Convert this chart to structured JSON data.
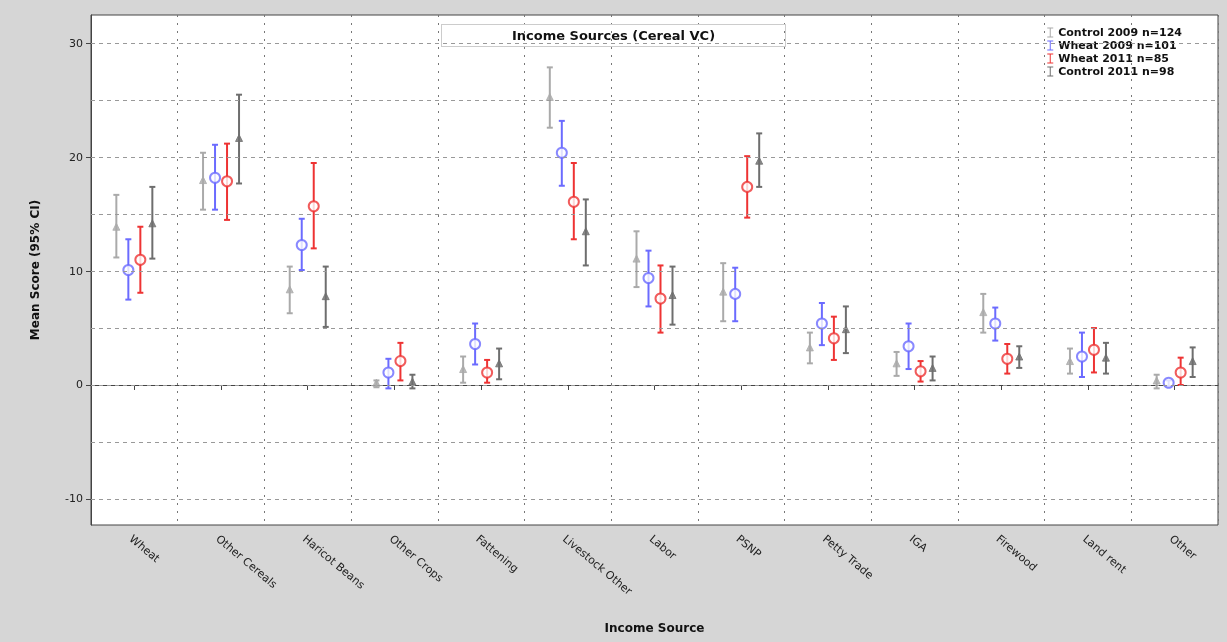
{
  "chart_data": {
    "type": "scatter",
    "title": "Income Sources (Cereal VC)",
    "xlabel": "Income Source",
    "ylabel": "Mean Score (95% CI)",
    "categories": [
      "Wheat",
      "Other Cereals",
      "Haricot Beans",
      "Other Crops",
      "Fattening",
      "Livestock Other",
      "Labor",
      "PSNP",
      "Petty Trade",
      "IGA",
      "Firewood",
      "Land rent",
      "Other"
    ],
    "series": [
      {
        "name": "Control 2009 n=124",
        "color": "#aaaaaa",
        "marker": "triangle",
        "values": [
          13.9,
          18.0,
          8.4,
          0.2,
          1.4,
          25.3,
          11.1,
          8.2,
          3.3,
          1.9,
          6.4,
          2.1,
          0.4
        ],
        "errors": [
          [
            11.2,
            16.7
          ],
          [
            15.4,
            20.4
          ],
          [
            6.3,
            10.4
          ],
          [
            -0.2,
            0.4
          ],
          [
            0.2,
            2.5
          ],
          [
            22.6,
            27.9
          ],
          [
            8.6,
            13.5
          ],
          [
            5.6,
            10.7
          ],
          [
            1.9,
            4.6
          ],
          [
            0.8,
            2.9
          ],
          [
            4.6,
            8.0
          ],
          [
            1.0,
            3.2
          ],
          [
            -0.3,
            0.9
          ]
        ]
      },
      {
        "name": "Wheat 2009 n=101",
        "color": "#6b6bff",
        "marker": "circle",
        "values": [
          10.1,
          18.2,
          12.3,
          1.1,
          3.6,
          20.4,
          9.4,
          8.0,
          5.4,
          3.4,
          5.4,
          2.5,
          0.2
        ],
        "errors": [
          [
            7.5,
            12.8
          ],
          [
            15.4,
            21.1
          ],
          [
            10.1,
            14.6
          ],
          [
            -0.3,
            2.3
          ],
          [
            1.8,
            5.4
          ],
          [
            17.5,
            23.2
          ],
          [
            6.9,
            11.8
          ],
          [
            5.6,
            10.3
          ],
          [
            3.5,
            7.2
          ],
          [
            1.4,
            5.4
          ],
          [
            3.9,
            6.8
          ],
          [
            0.7,
            4.6
          ],
          [
            -0.1,
            0.4
          ]
        ]
      },
      {
        "name": "Wheat 2011 n=85",
        "color": "#ee3333",
        "marker": "circle",
        "values": [
          11.0,
          17.9,
          15.7,
          2.1,
          1.1,
          16.1,
          7.6,
          17.4,
          4.1,
          1.2,
          2.3,
          3.1,
          1.1
        ],
        "errors": [
          [
            8.1,
            13.9
          ],
          [
            14.5,
            21.2
          ],
          [
            12.0,
            19.5
          ],
          [
            0.4,
            3.7
          ],
          [
            0.2,
            2.2
          ],
          [
            12.8,
            19.5
          ],
          [
            4.6,
            10.5
          ],
          [
            14.7,
            20.1
          ],
          [
            2.2,
            6.0
          ],
          [
            0.3,
            2.1
          ],
          [
            1.0,
            3.6
          ],
          [
            1.1,
            5.0
          ],
          [
            0.0,
            2.4
          ]
        ]
      },
      {
        "name": "Control 2011 n=98",
        "color": "#6e6e6e",
        "marker": "triangle",
        "values": [
          14.2,
          21.7,
          7.8,
          0.3,
          1.9,
          13.5,
          7.9,
          19.7,
          4.9,
          1.5,
          2.5,
          2.4,
          2.1
        ],
        "errors": [
          [
            11.1,
            17.4
          ],
          [
            17.7,
            25.5
          ],
          [
            5.1,
            10.4
          ],
          [
            -0.3,
            0.9
          ],
          [
            0.5,
            3.2
          ],
          [
            10.5,
            16.3
          ],
          [
            5.3,
            10.4
          ],
          [
            17.4,
            22.1
          ],
          [
            2.8,
            6.9
          ],
          [
            0.4,
            2.5
          ],
          [
            1.5,
            3.4
          ],
          [
            1.0,
            3.7
          ],
          [
            0.7,
            3.3
          ]
        ]
      }
    ],
    "ylim": [
      -12.3,
      32.5
    ],
    "yticks": [
      -10,
      {
        "value": -5,
        "label": null
      },
      0,
      {
        "value": 5,
        "label": null
      },
      10,
      {
        "value": 15,
        "label": null
      },
      20,
      {
        "value": 25,
        "label": null
      },
      30
    ],
    "grid": true,
    "legend": "top right"
  }
}
